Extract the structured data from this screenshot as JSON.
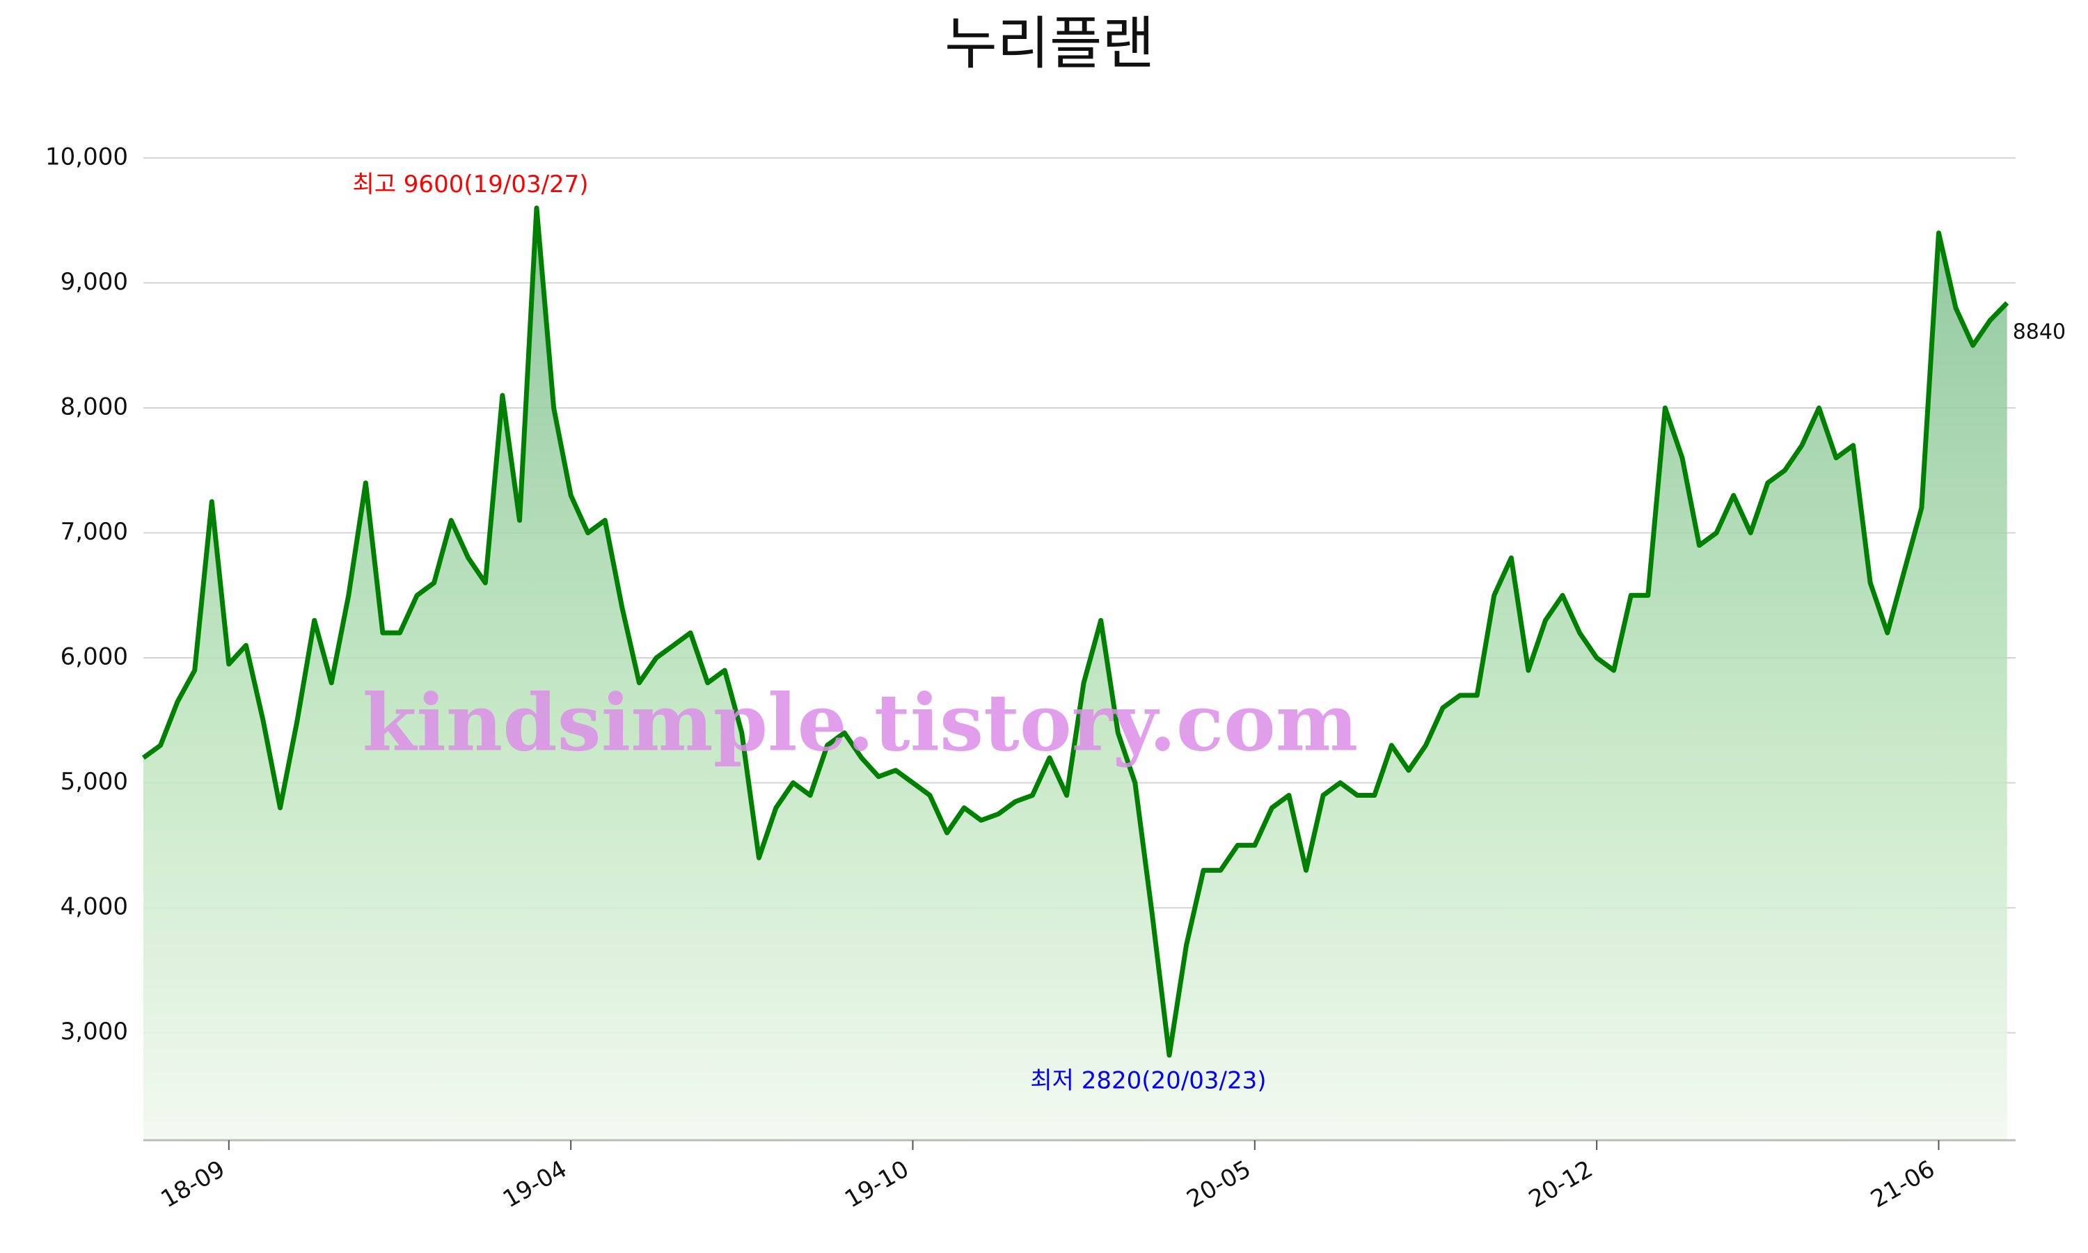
{
  "chart_data": {
    "type": "line",
    "title": "누리플랜",
    "categories": [
      null,
      null,
      null,
      null,
      null,
      "18-09",
      null,
      null,
      null,
      null,
      null,
      null,
      null,
      null,
      null,
      null,
      null,
      null,
      null,
      null,
      null,
      null,
      null,
      null,
      null,
      "19-04",
      null,
      null,
      null,
      null,
      null,
      null,
      null,
      null,
      null,
      null,
      null,
      null,
      null,
      null,
      null,
      null,
      null,
      null,
      null,
      "19-10",
      null,
      null,
      null,
      null,
      null,
      null,
      null,
      null,
      null,
      null,
      null,
      null,
      null,
      null,
      null,
      null,
      null,
      null,
      null,
      "20-05",
      null,
      null,
      null,
      null,
      null,
      null,
      null,
      null,
      null,
      null,
      null,
      null,
      null,
      null,
      null,
      null,
      null,
      null,
      null,
      "20-12",
      null,
      null,
      null,
      null,
      null,
      null,
      null,
      null,
      null,
      null,
      null,
      null,
      null,
      null,
      null,
      null,
      null,
      null,
      null,
      "21-06",
      null,
      null,
      null,
      null
    ],
    "values": [
      5200,
      5300,
      5650,
      5900,
      7250,
      5950,
      6100,
      5500,
      4800,
      5500,
      6300,
      5800,
      6500,
      7400,
      6200,
      6200,
      6500,
      6600,
      7100,
      6800,
      6600,
      8100,
      7100,
      9600,
      8000,
      7300,
      7000,
      7100,
      6400,
      5800,
      6000,
      6100,
      6200,
      5800,
      5900,
      5400,
      4400,
      4800,
      5000,
      4900,
      5300,
      5400,
      5200,
      5050,
      5100,
      5000,
      4900,
      4600,
      4800,
      4700,
      4750,
      4850,
      4900,
      5200,
      4900,
      5800,
      6300,
      5400,
      5000,
      3950,
      2820,
      3700,
      4300,
      4300,
      4500,
      4500,
      4800,
      4900,
      4300,
      4900,
      5000,
      4900,
      4900,
      5300,
      5100,
      5300,
      5600,
      5700,
      5700,
      6500,
      6800,
      5900,
      6300,
      6500,
      6200,
      6000,
      5900,
      6500,
      6500,
      8000,
      7600,
      6900,
      7000,
      7300,
      7000,
      7400,
      7500,
      7700,
      8000,
      7600,
      7700,
      6600,
      6200,
      6700,
      7200,
      9400,
      8800,
      8500,
      8700,
      8840
    ],
    "color": "#008000",
    "ylim": [
      2140,
      10200
    ],
    "yticks": [
      {
        "value": 3000,
        "label": "3,000"
      },
      {
        "value": 4000,
        "label": "4,000"
      },
      {
        "value": 5000,
        "label": "5,000"
      },
      {
        "value": 6000,
        "label": "6,000"
      },
      {
        "value": 7000,
        "label": "7,000"
      },
      {
        "value": 8000,
        "label": "8,000"
      },
      {
        "value": 9000,
        "label": "9,000"
      },
      {
        "value": 10000,
        "label": "10,000"
      }
    ],
    "grid": true,
    "max_label": "최고 9600(19/03/27)",
    "max_color": "#ff0000",
    "min_label": "최저 2820(20/03/23)",
    "min_color": "#0000ff",
    "end_label": "8840",
    "watermark": "kindsimple.tistory.com"
  }
}
